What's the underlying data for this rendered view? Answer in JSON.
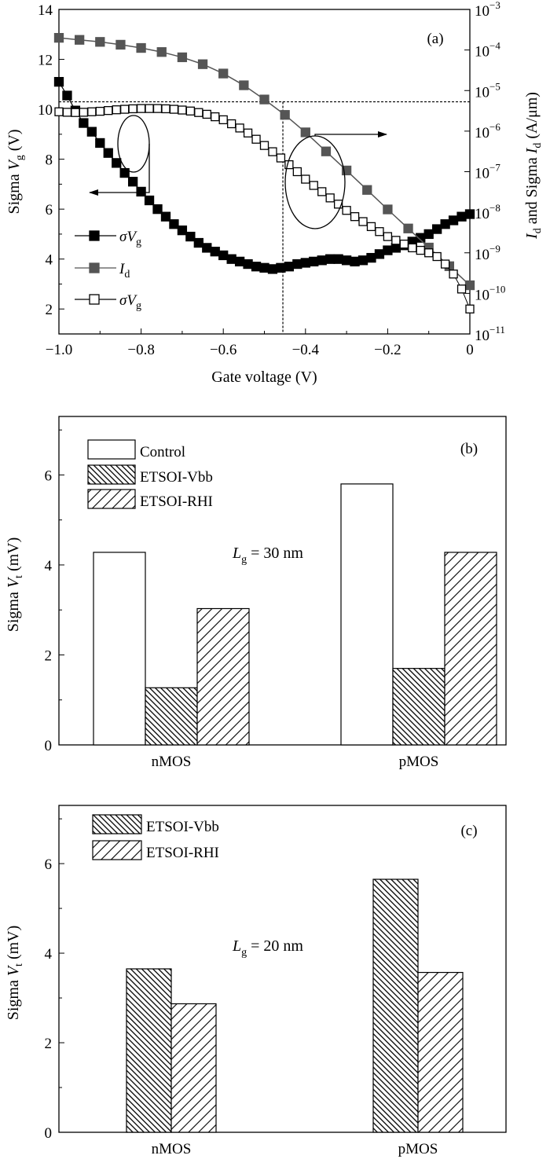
{
  "colors": {
    "axis": "#000000",
    "id_marker": "#555555",
    "sigma_filled": "#000000",
    "sigma_open_stroke": "#000000",
    "bar_fill": "#ffffff"
  },
  "chart_data": [
    {
      "type": "line",
      "panel_label": "(a)",
      "xlabel": "Gate voltage (V)",
      "ylabel_left": {
        "main": "Sigma ",
        "var": "V",
        "sub": "g",
        "unit": " (V)"
      },
      "ylabel_right": {
        "v1": "I",
        "s1": "d",
        "mid": " and Sigma ",
        "v2": "I",
        "s2": "d",
        "unit": " (A/μm)"
      },
      "xlim": [
        -1.0,
        0
      ],
      "ylim_left": [
        1,
        14
      ],
      "ylim_right_log10": [
        -11,
        -3
      ],
      "x_ticks": [
        "−1.0",
        "−0.8",
        "−0.6",
        "−0.4",
        "−0.2",
        "0"
      ],
      "y_ticks_left": [
        "2",
        "4",
        "6",
        "8",
        "10",
        "12",
        "14"
      ],
      "y_ticks_right": [
        {
          "base": "10",
          "exp": "−3"
        },
        {
          "base": "10",
          "exp": "−4"
        },
        {
          "base": "10",
          "exp": "−5"
        },
        {
          "base": "10",
          "exp": "−6"
        },
        {
          "base": "10",
          "exp": "−7"
        },
        {
          "base": "10",
          "exp": "−8"
        },
        {
          "base": "10",
          "exp": "−9"
        },
        {
          "base": "10",
          "exp": "−10"
        },
        {
          "base": "10",
          "exp": "−11"
        }
      ],
      "legend": [
        {
          "symbol": "σ",
          "var": "V",
          "sub": "g",
          "marker": "filled-black"
        },
        {
          "symbol": "",
          "var": "I",
          "sub": "d",
          "marker": "filled-gray"
        },
        {
          "symbol": "σ",
          "var": "V",
          "sub": "g",
          "marker": "open"
        }
      ],
      "reference_lines": {
        "horizontal_y_left": 10.3,
        "vertical_x": -0.455
      },
      "series": [
        {
          "axis": "left",
          "marker": "filled-black",
          "x": [
            -1.0,
            -0.98,
            -0.96,
            -0.94,
            -0.92,
            -0.9,
            -0.88,
            -0.86,
            -0.84,
            -0.82,
            -0.8,
            -0.78,
            -0.76,
            -0.74,
            -0.72,
            -0.7,
            -0.68,
            -0.66,
            -0.64,
            -0.62,
            -0.6,
            -0.58,
            -0.56,
            -0.54,
            -0.52,
            -0.5,
            -0.48,
            -0.46,
            -0.44,
            -0.42,
            -0.4,
            -0.38,
            -0.36,
            -0.34,
            -0.32,
            -0.3,
            -0.28,
            -0.26,
            -0.24,
            -0.22,
            -0.2,
            -0.18,
            -0.16,
            -0.14,
            -0.12,
            -0.1,
            -0.08,
            -0.06,
            -0.04,
            -0.02,
            0
          ],
          "y": [
            11.1,
            10.55,
            9.95,
            9.45,
            9.1,
            8.65,
            8.25,
            7.85,
            7.45,
            7.1,
            6.7,
            6.35,
            6.0,
            5.7,
            5.4,
            5.15,
            4.9,
            4.65,
            4.45,
            4.3,
            4.15,
            4.0,
            3.9,
            3.8,
            3.7,
            3.65,
            3.6,
            3.65,
            3.7,
            3.8,
            3.85,
            3.9,
            3.95,
            4.0,
            4.0,
            3.95,
            3.9,
            3.95,
            4.05,
            4.2,
            4.35,
            4.45,
            4.55,
            4.7,
            4.85,
            5.0,
            5.2,
            5.4,
            5.55,
            5.7,
            5.8
          ]
        },
        {
          "axis": "right",
          "marker": "filled-gray",
          "x": [
            -1.0,
            -0.95,
            -0.9,
            -0.85,
            -0.8,
            -0.75,
            -0.7,
            -0.65,
            -0.6,
            -0.55,
            -0.5,
            -0.45,
            -0.4,
            -0.35,
            -0.3,
            -0.25,
            -0.2,
            -0.15,
            -0.1,
            -0.05,
            0
          ],
          "y_log10": [
            -3.7,
            -3.75,
            -3.8,
            -3.87,
            -3.95,
            -4.05,
            -4.18,
            -4.35,
            -4.58,
            -4.87,
            -5.22,
            -5.6,
            -6.03,
            -6.5,
            -6.97,
            -7.45,
            -7.93,
            -8.4,
            -8.87,
            -9.33,
            -9.8
          ]
        },
        {
          "axis": "left",
          "marker": "open",
          "x": [
            -1.0,
            -0.98,
            -0.96,
            -0.94,
            -0.92,
            -0.9,
            -0.88,
            -0.86,
            -0.84,
            -0.82,
            -0.8,
            -0.78,
            -0.76,
            -0.74,
            -0.72,
            -0.7,
            -0.68,
            -0.66,
            -0.64,
            -0.62,
            -0.6,
            -0.58,
            -0.56,
            -0.54,
            -0.52,
            -0.5,
            -0.48,
            -0.46,
            -0.44,
            -0.42,
            -0.4,
            -0.38,
            -0.36,
            -0.34,
            -0.32,
            -0.3,
            -0.28,
            -0.26,
            -0.24,
            -0.22,
            -0.2,
            -0.18,
            -0.16,
            -0.14,
            -0.12,
            -0.1,
            -0.08,
            -0.06,
            -0.04,
            -0.02,
            0
          ],
          "y": [
            9.9,
            9.88,
            9.87,
            9.88,
            9.9,
            9.92,
            9.95,
            9.98,
            10.0,
            10.02,
            10.03,
            10.03,
            10.03,
            10.02,
            10.0,
            9.97,
            9.93,
            9.87,
            9.8,
            9.7,
            9.58,
            9.42,
            9.25,
            9.05,
            8.8,
            8.55,
            8.3,
            8.05,
            7.78,
            7.5,
            7.2,
            6.95,
            6.7,
            6.45,
            6.2,
            5.95,
            5.7,
            5.5,
            5.3,
            5.1,
            4.9,
            4.75,
            4.6,
            4.45,
            4.35,
            4.25,
            4.1,
            3.8,
            3.4,
            2.8,
            2.0
          ]
        }
      ],
      "annotations": [
        "left-arrow-ellipse",
        "right-arrow-ellipse"
      ]
    },
    {
      "type": "bar",
      "panel_label": "(b)",
      "ylabel": {
        "main": "Sigma ",
        "var": "V",
        "sub": "t",
        "unit": " (mV)"
      },
      "ylim": [
        0,
        7.3
      ],
      "y_ticks": [
        "0",
        "2",
        "4",
        "6"
      ],
      "categories": [
        "nMOS",
        "pMOS"
      ],
      "annotation": {
        "var": "L",
        "sub": "g",
        "rest": " = 30 nm"
      },
      "series": [
        {
          "name": "Control",
          "pattern": "none",
          "values": [
            4.28,
            5.8
          ]
        },
        {
          "name": "ETSOI-Vbb",
          "pattern": "dense-backslash",
          "values": [
            1.27,
            1.7
          ]
        },
        {
          "name": "ETSOI-RHI",
          "pattern": "slash",
          "values": [
            3.03,
            4.28
          ]
        }
      ]
    },
    {
      "type": "bar",
      "panel_label": "(c)",
      "ylabel": {
        "main": "Sigma ",
        "var": "V",
        "sub": "t",
        "unit": " (mV)"
      },
      "ylim": [
        0,
        7.3
      ],
      "y_ticks": [
        "0",
        "2",
        "4",
        "6"
      ],
      "categories": [
        "nMOS",
        "pMOS"
      ],
      "annotation": {
        "var": "L",
        "sub": "g",
        "rest": " = 20 nm"
      },
      "series": [
        {
          "name": "ETSOI-Vbb",
          "pattern": "dense-backslash",
          "values": [
            3.65,
            5.65
          ]
        },
        {
          "name": "ETSOI-RHI",
          "pattern": "slash",
          "values": [
            2.87,
            3.57
          ]
        }
      ]
    }
  ]
}
